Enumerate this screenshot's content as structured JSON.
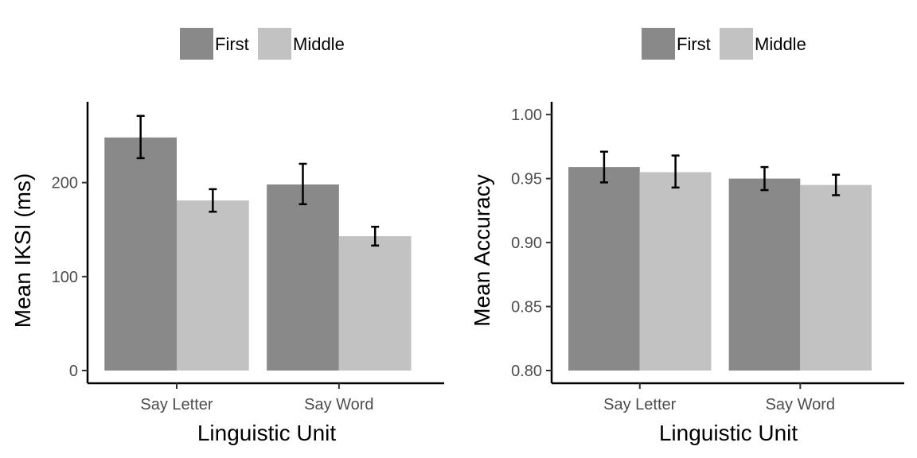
{
  "chart_data": [
    {
      "type": "bar",
      "title": "",
      "xlabel": "Linguistic Unit",
      "ylabel": "Mean IKSI (ms)",
      "categories": [
        "Say Letter",
        "Say Word"
      ],
      "series": [
        {
          "name": "First",
          "color": "#898989",
          "values": [
            248,
            198
          ],
          "error_low": [
            226,
            177
          ],
          "error_high": [
            271,
            220
          ]
        },
        {
          "name": "Middle",
          "color": "#c2c2c2",
          "values": [
            181,
            143
          ],
          "error_low": [
            169,
            133
          ],
          "error_high": [
            193,
            153
          ]
        }
      ],
      "ylim": [
        0,
        286
      ],
      "yticks": [
        0,
        100,
        200
      ],
      "ytick_labels": [
        "0",
        "100",
        "200"
      ],
      "legend_position": "top",
      "grid": false
    },
    {
      "type": "bar",
      "title": "",
      "xlabel": "Linguistic Unit",
      "ylabel": "Mean Accuracy",
      "categories": [
        "Say Letter",
        "Say Word"
      ],
      "series": [
        {
          "name": "First",
          "color": "#898989",
          "values": [
            0.959,
            0.95
          ],
          "error_low": [
            0.947,
            0.941
          ],
          "error_high": [
            0.971,
            0.959
          ]
        },
        {
          "name": "Middle",
          "color": "#c2c2c2",
          "values": [
            0.955,
            0.945
          ],
          "error_low": [
            0.943,
            0.937
          ],
          "error_high": [
            0.968,
            0.953
          ]
        }
      ],
      "ylim": [
        0.8,
        1.01
      ],
      "yticks": [
        0.8,
        0.85,
        0.9,
        0.95,
        1.0
      ],
      "ytick_labels": [
        "0.80",
        "0.85",
        "0.90",
        "0.95",
        "1.00"
      ],
      "legend_position": "top",
      "grid": false
    }
  ]
}
